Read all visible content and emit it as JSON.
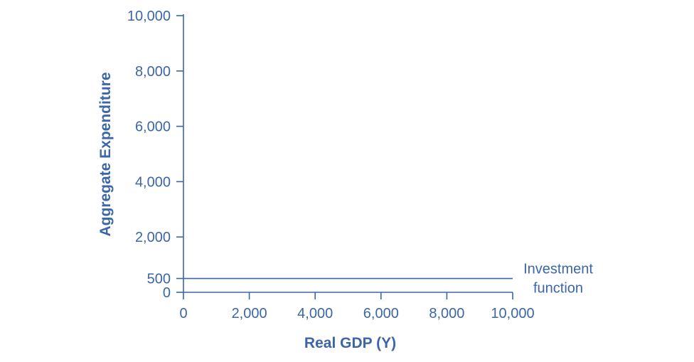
{
  "chart_data": {
    "type": "line",
    "title": "",
    "xlabel": "Real GDP (Y)",
    "ylabel": "Aggregate Expenditure",
    "xlim": [
      0,
      10000
    ],
    "ylim": [
      0,
      10000
    ],
    "x_ticks": [
      {
        "value": 0,
        "label": "0"
      },
      {
        "value": 2000,
        "label": "2,000"
      },
      {
        "value": 4000,
        "label": "4,000"
      },
      {
        "value": 6000,
        "label": "6,000"
      },
      {
        "value": 8000,
        "label": "8,000"
      },
      {
        "value": 10000,
        "label": "10,000"
      }
    ],
    "y_ticks": [
      {
        "value": 0,
        "label": "0"
      },
      {
        "value": 500,
        "label": "500"
      },
      {
        "value": 2000,
        "label": "2,000"
      },
      {
        "value": 4000,
        "label": "4,000"
      },
      {
        "value": 6000,
        "label": "6,000"
      },
      {
        "value": 8000,
        "label": "8,000"
      },
      {
        "value": 10000,
        "label": "10,000"
      }
    ],
    "grid": false,
    "series": [
      {
        "name": "",
        "x": [
          0,
          10000
        ],
        "y": [
          500,
          500
        ]
      }
    ],
    "annotations": [
      {
        "lines": [
          "Investment",
          "function"
        ],
        "x": 10000,
        "y": 500
      }
    ]
  },
  "colors": {
    "text": "#3b66a8",
    "axis": "#3b66a8",
    "line": "#3b66a8"
  }
}
